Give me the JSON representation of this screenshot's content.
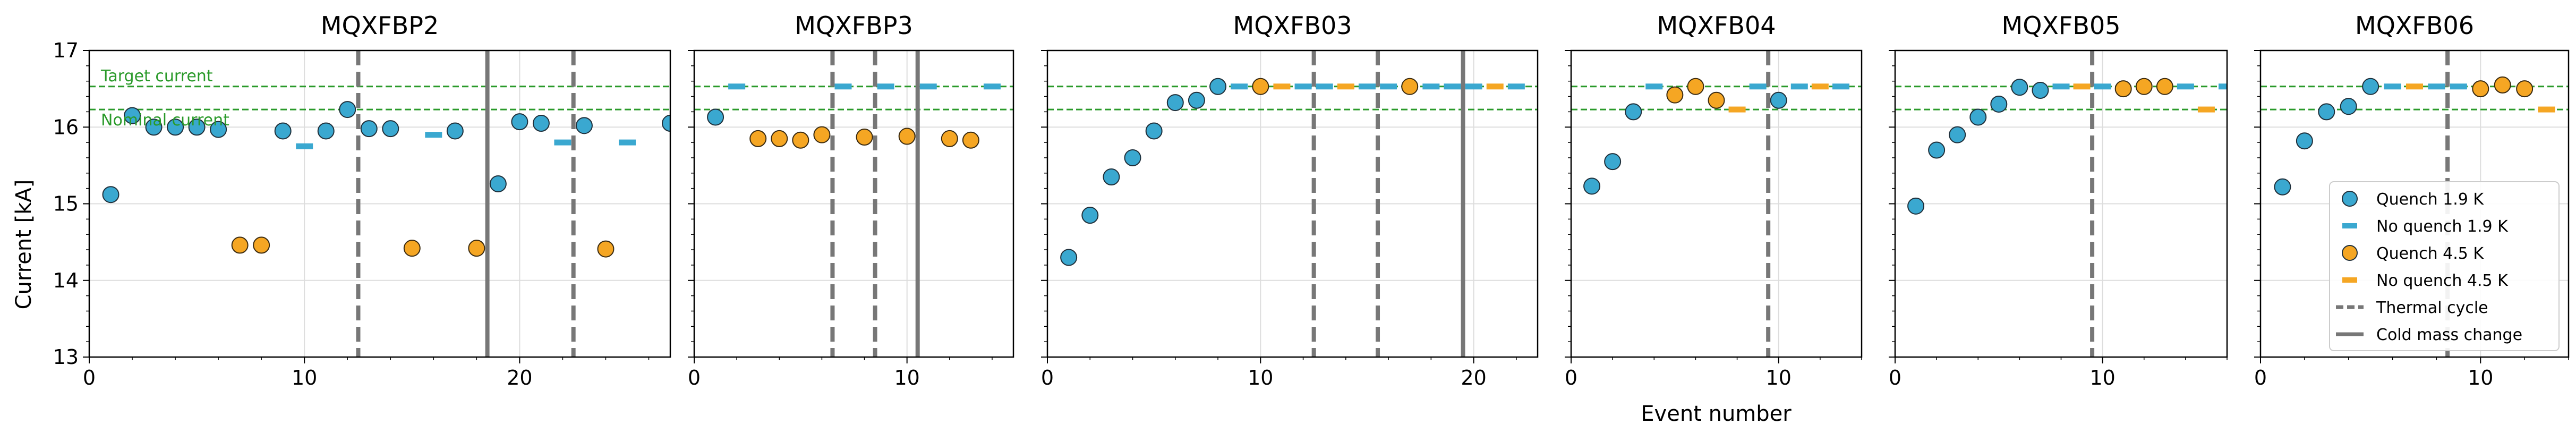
{
  "figure": {
    "ylabel": "Current [kA]",
    "xlabel": "Event number",
    "reference_lines": {
      "target_label": "Target current",
      "target_value": 16.53,
      "nominal_label": "Nominal current",
      "nominal_value": 16.23,
      "color": "#2a9a2a"
    }
  },
  "legend": {
    "placement": "lower-right of last panel",
    "entries": [
      {
        "label": "Quench 1.9 K",
        "marker": "circle",
        "color": "#3aa8d0"
      },
      {
        "label": "No quench 1.9 K",
        "marker": "dash",
        "color": "#3aa8d0"
      },
      {
        "label": "Quench 4.5 K",
        "marker": "circle",
        "color": "#f5a623"
      },
      {
        "label": "No quench 4.5 K",
        "marker": "dash",
        "color": "#f5a623"
      },
      {
        "label": "Thermal cycle",
        "marker": "dashed-line",
        "color": "#777777"
      },
      {
        "label": "Cold mass change",
        "marker": "solid-line",
        "color": "#777777"
      }
    ]
  },
  "chart_data": [
    {
      "type": "scatter",
      "title": "MQXFBP2",
      "xlim": [
        0,
        27
      ],
      "ylim": [
        13,
        17
      ],
      "xticks": [
        0,
        10,
        20
      ],
      "yticks": [
        13,
        14,
        15,
        16,
        17
      ],
      "grid": true,
      "quench_19": [
        [
          1,
          15.12
        ],
        [
          2,
          16.15
        ],
        [
          3,
          16.0
        ],
        [
          4,
          16.0
        ],
        [
          5,
          16.0
        ],
        [
          6,
          15.97
        ],
        [
          9,
          15.95
        ],
        [
          11,
          15.95
        ],
        [
          12,
          16.23
        ],
        [
          13,
          15.98
        ],
        [
          14,
          15.98
        ],
        [
          17,
          15.95
        ],
        [
          19,
          15.26
        ],
        [
          20,
          16.07
        ],
        [
          21,
          16.05
        ],
        [
          23,
          16.02
        ],
        [
          27,
          16.05
        ]
      ],
      "noquench_19": [
        [
          10,
          15.75
        ],
        [
          16,
          15.9
        ],
        [
          22,
          15.8
        ],
        [
          25,
          15.8
        ]
      ],
      "quench_45": [
        [
          7,
          14.46
        ],
        [
          8,
          14.46
        ],
        [
          15,
          14.42
        ],
        [
          18,
          14.42
        ],
        [
          24,
          14.41
        ]
      ],
      "noquench_45": [],
      "thermal_cycles": [
        12.5,
        22.5
      ],
      "cold_mass_changes": [
        18.5
      ]
    },
    {
      "type": "scatter",
      "title": "MQXFBP3",
      "xlim": [
        0,
        15
      ],
      "ylim": [
        13,
        17
      ],
      "xticks": [
        0,
        10
      ],
      "yticks": [
        13,
        14,
        15,
        16,
        17
      ],
      "grid": true,
      "quench_19": [
        [
          1,
          16.13
        ]
      ],
      "noquench_19": [
        [
          2,
          16.53
        ],
        [
          7,
          16.53
        ],
        [
          9,
          16.53
        ],
        [
          11,
          16.53
        ],
        [
          14,
          16.53
        ]
      ],
      "quench_45": [
        [
          3,
          15.85
        ],
        [
          4,
          15.85
        ],
        [
          5,
          15.83
        ],
        [
          6,
          15.9
        ],
        [
          8,
          15.87
        ],
        [
          10,
          15.88
        ],
        [
          12,
          15.85
        ],
        [
          13,
          15.83
        ]
      ],
      "noquench_45": [],
      "thermal_cycles": [
        6.5,
        8.5
      ],
      "cold_mass_changes": [
        10.5
      ]
    },
    {
      "type": "scatter",
      "title": "MQXFB03",
      "xlim": [
        0,
        23
      ],
      "ylim": [
        13,
        17
      ],
      "xticks": [
        0,
        10,
        20
      ],
      "yticks": [
        13,
        14,
        15,
        16,
        17
      ],
      "grid": true,
      "quench_19": [
        [
          1,
          14.3
        ],
        [
          2,
          14.85
        ],
        [
          3,
          15.35
        ],
        [
          4,
          15.6
        ],
        [
          5,
          15.95
        ],
        [
          6,
          16.32
        ],
        [
          7,
          16.35
        ],
        [
          8,
          16.53
        ]
      ],
      "noquench_19": [
        [
          9,
          16.53
        ],
        [
          12,
          16.53
        ],
        [
          13,
          16.53
        ],
        [
          15,
          16.53
        ],
        [
          16,
          16.53
        ],
        [
          18,
          16.53
        ],
        [
          19,
          16.53
        ],
        [
          20,
          16.53
        ],
        [
          22,
          16.53
        ]
      ],
      "quench_45": [
        [
          10,
          16.53
        ],
        [
          17,
          16.53
        ]
      ],
      "noquench_45": [
        [
          11,
          16.53
        ],
        [
          14,
          16.53
        ],
        [
          21,
          16.53
        ]
      ],
      "thermal_cycles": [
        12.5,
        15.5
      ],
      "cold_mass_changes": [
        19.5
      ]
    },
    {
      "type": "scatter",
      "title": "MQXFB04",
      "xlim": [
        0,
        14
      ],
      "ylim": [
        13,
        17
      ],
      "xticks": [
        0,
        10
      ],
      "yticks": [
        13,
        14,
        15,
        16,
        17
      ],
      "grid": true,
      "quench_19": [
        [
          1,
          15.23
        ],
        [
          2,
          15.55
        ],
        [
          3,
          16.2
        ],
        [
          10,
          16.35
        ]
      ],
      "noquench_19": [
        [
          4,
          16.53
        ],
        [
          9,
          16.53
        ],
        [
          11,
          16.53
        ],
        [
          13,
          16.53
        ]
      ],
      "quench_45": [
        [
          5,
          16.42
        ],
        [
          6,
          16.53
        ],
        [
          7,
          16.35
        ]
      ],
      "noquench_45": [
        [
          8,
          16.23
        ],
        [
          12,
          16.53
        ]
      ],
      "thermal_cycles": [
        9.5
      ],
      "cold_mass_changes": []
    },
    {
      "type": "scatter",
      "title": "MQXFB05",
      "xlim": [
        0,
        16
      ],
      "ylim": [
        13,
        17
      ],
      "xticks": [
        0,
        10
      ],
      "yticks": [
        13,
        14,
        15,
        16,
        17
      ],
      "grid": true,
      "quench_19": [
        [
          1,
          14.97
        ],
        [
          2,
          15.7
        ],
        [
          3,
          15.9
        ],
        [
          4,
          16.13
        ],
        [
          5,
          16.3
        ],
        [
          6,
          16.52
        ],
        [
          7,
          16.48
        ]
      ],
      "noquench_19": [
        [
          8,
          16.53
        ],
        [
          10,
          16.53
        ],
        [
          14,
          16.53
        ],
        [
          16,
          16.53
        ]
      ],
      "quench_45": [
        [
          11,
          16.5
        ],
        [
          12,
          16.53
        ],
        [
          13,
          16.53
        ]
      ],
      "noquench_45": [
        [
          9,
          16.53
        ],
        [
          15,
          16.23
        ]
      ],
      "thermal_cycles": [
        9.5
      ],
      "cold_mass_changes": []
    },
    {
      "type": "scatter",
      "title": "MQXFB06",
      "xlim": [
        0,
        14
      ],
      "ylim": [
        13,
        17
      ],
      "xticks": [
        0,
        10
      ],
      "yticks": [
        13,
        14,
        15,
        16,
        17
      ],
      "grid": true,
      "quench_19": [
        [
          1,
          15.22
        ],
        [
          2,
          15.82
        ],
        [
          3,
          16.2
        ],
        [
          4,
          16.27
        ],
        [
          5,
          16.53
        ]
      ],
      "noquench_19": [
        [
          6,
          16.53
        ],
        [
          8,
          16.53
        ],
        [
          9,
          16.53
        ]
      ],
      "quench_45": [
        [
          10,
          16.5
        ],
        [
          11,
          16.55
        ],
        [
          12,
          16.5
        ]
      ],
      "noquench_45": [
        [
          7,
          16.53
        ],
        [
          13,
          16.23
        ]
      ],
      "thermal_cycles": [
        8.5
      ],
      "cold_mass_changes": []
    }
  ]
}
